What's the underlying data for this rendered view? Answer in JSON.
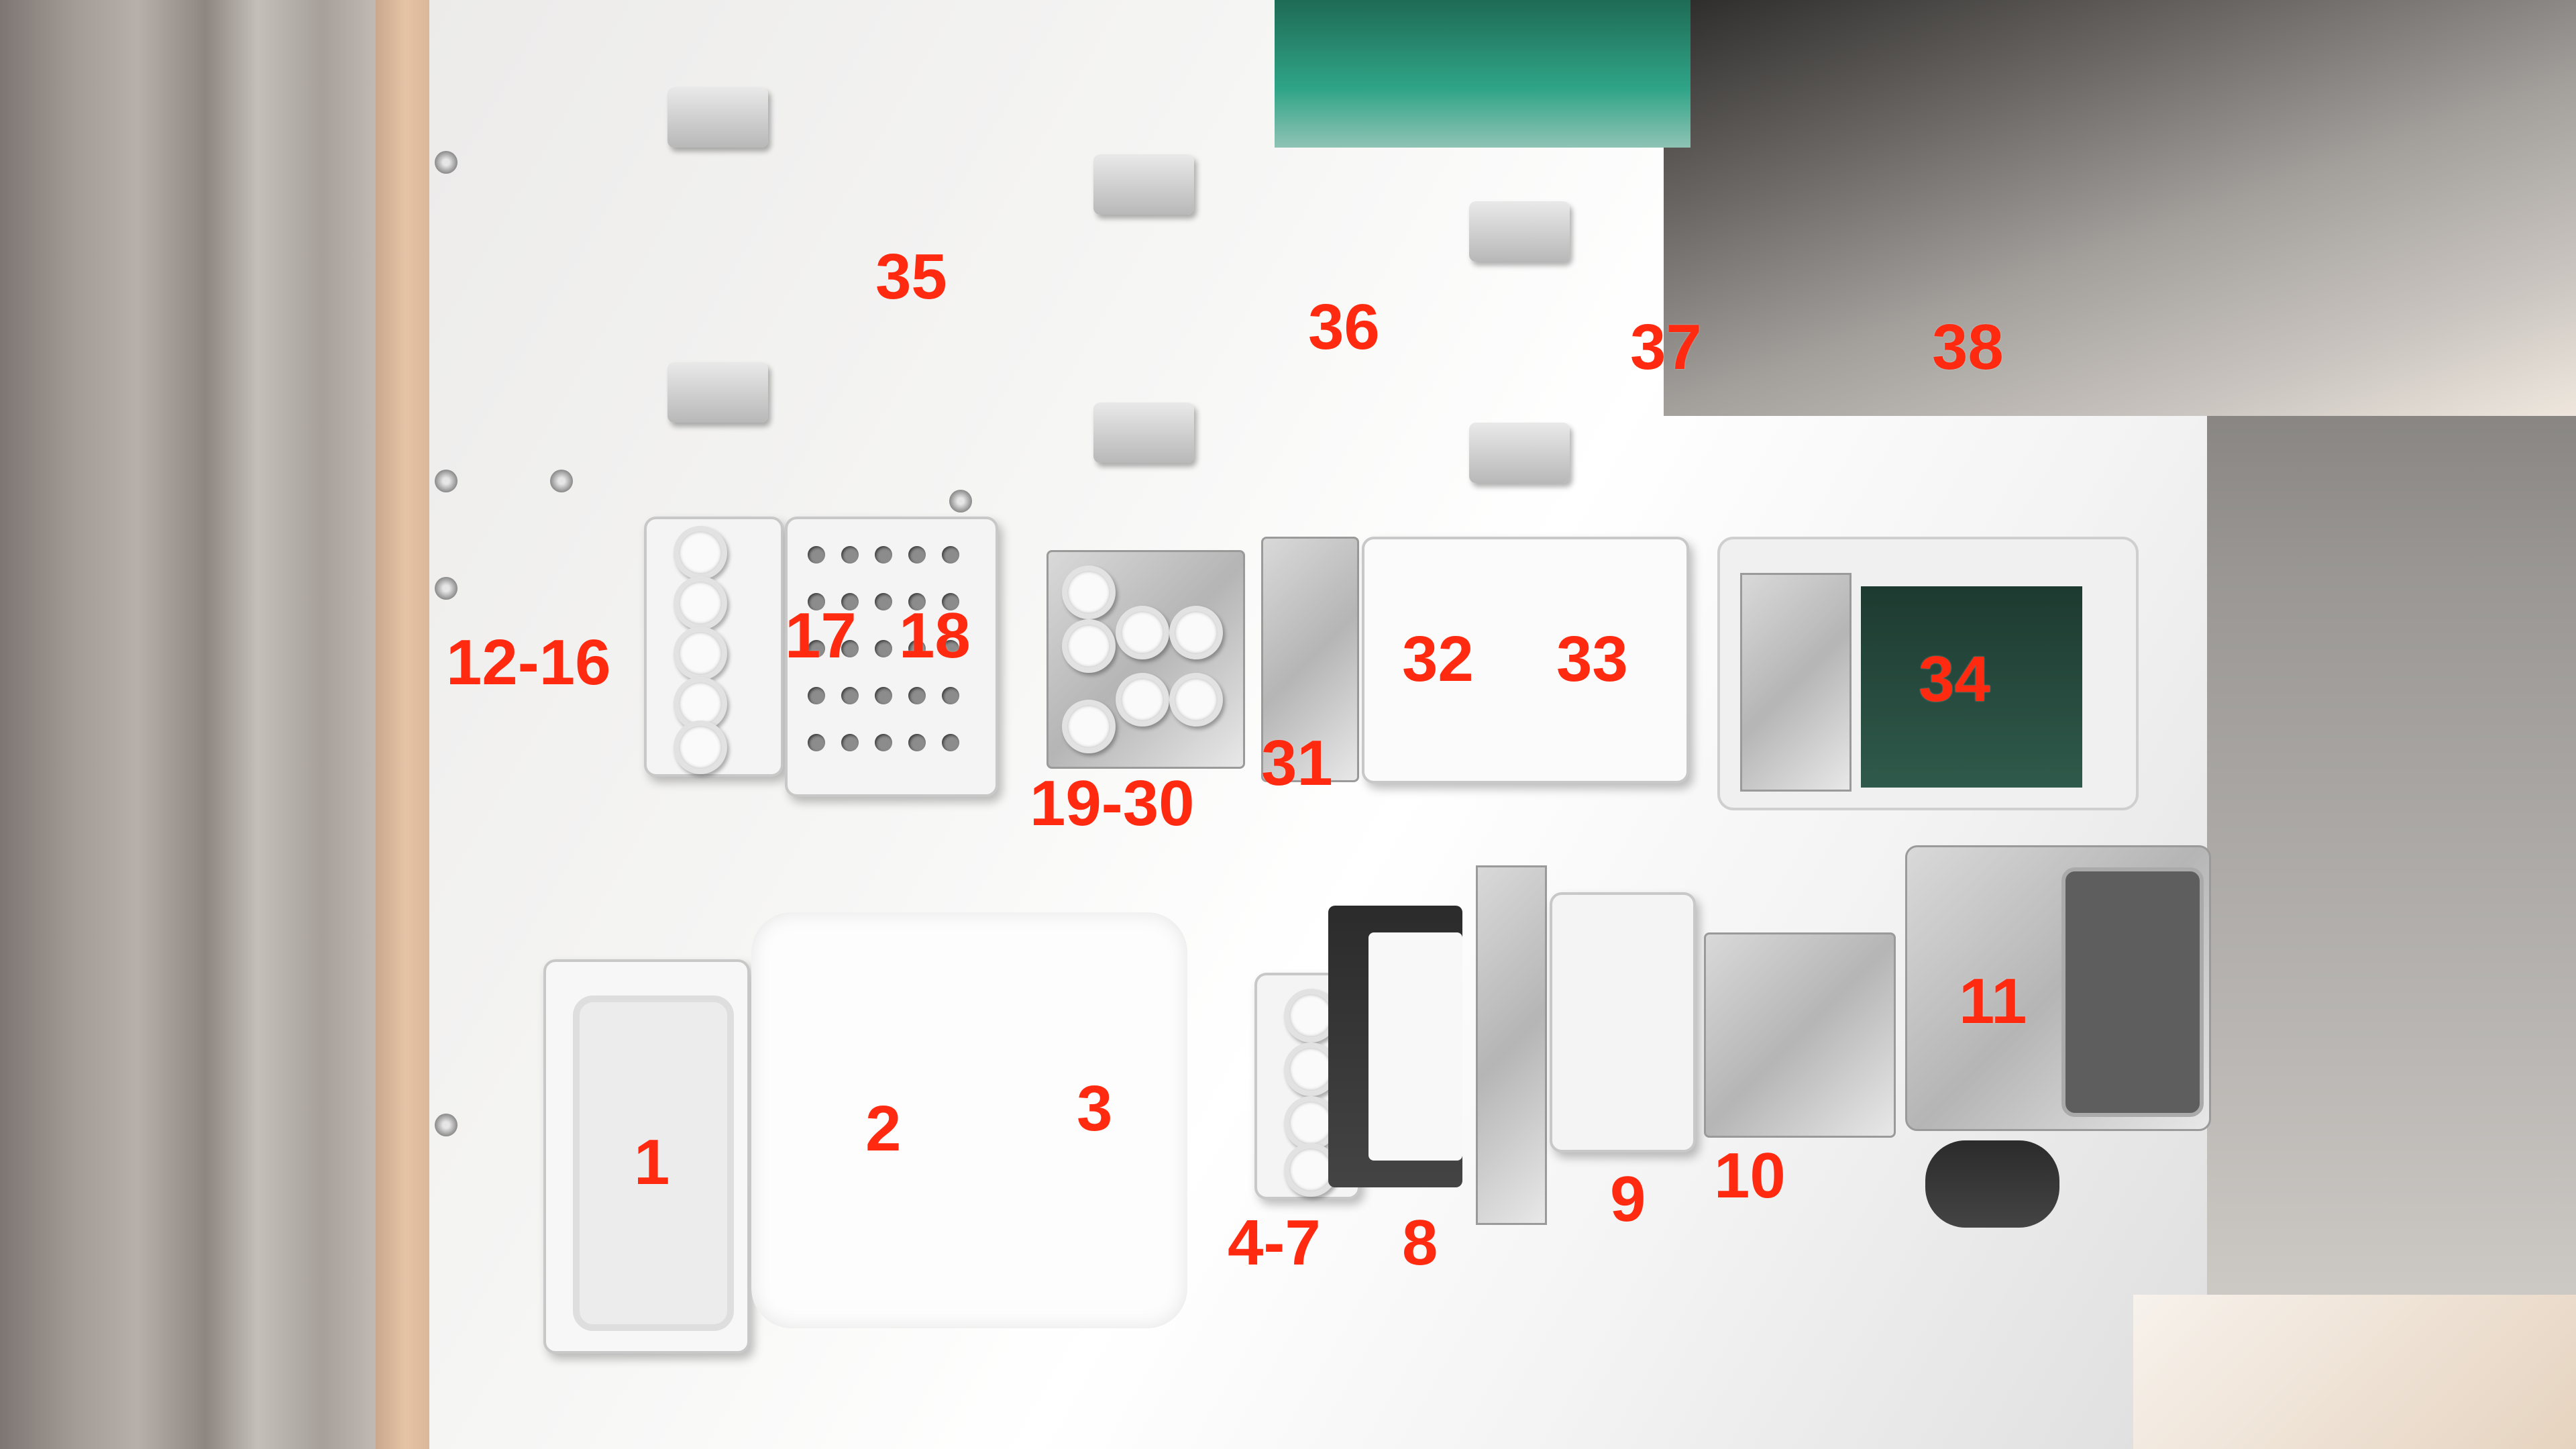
{
  "photo": {
    "labels": [
      {
        "id": "1",
        "text": "1"
      },
      {
        "id": "2",
        "text": "2"
      },
      {
        "id": "3",
        "text": "3"
      },
      {
        "id": "4-7",
        "text": "4-7"
      },
      {
        "id": "8",
        "text": "8"
      },
      {
        "id": "9",
        "text": "9"
      },
      {
        "id": "10",
        "text": "10"
      },
      {
        "id": "11",
        "text": "11"
      },
      {
        "id": "12-16",
        "text": "12-16"
      },
      {
        "id": "17",
        "text": "17"
      },
      {
        "id": "18",
        "text": "18"
      },
      {
        "id": "19-30",
        "text": "19-30"
      },
      {
        "id": "31",
        "text": "31"
      },
      {
        "id": "32",
        "text": "32"
      },
      {
        "id": "33",
        "text": "33"
      },
      {
        "id": "34",
        "text": "34"
      },
      {
        "id": "35",
        "text": "35"
      },
      {
        "id": "36",
        "text": "36"
      },
      {
        "id": "37",
        "text": "37"
      },
      {
        "id": "38",
        "text": "38"
      }
    ],
    "label_color": "#ff2a10",
    "deck_color": "#f2f2f2"
  }
}
